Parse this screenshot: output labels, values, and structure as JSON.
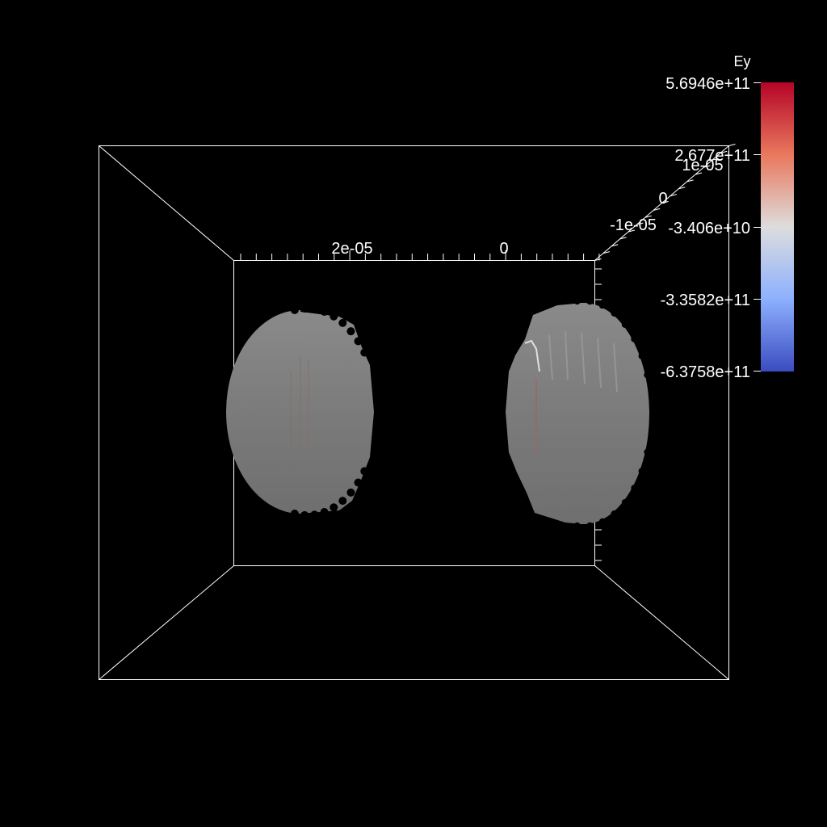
{
  "colorbar": {
    "title": "Ey",
    "ticks": [
      "5.6946e+11",
      "2.677e+11",
      "-3.406e+10",
      "-3.3582e+11",
      "-6.3758e+11"
    ],
    "colors": {
      "top": "#b40426",
      "mid": "#dddddd",
      "bottom": "#3b4cc0"
    }
  },
  "axes": {
    "x_labels": [
      "2e-05",
      "0"
    ],
    "depth_labels": [
      "1e-05",
      "0",
      "-1e-05"
    ],
    "line_color": "#ffffff"
  },
  "objects": {
    "surface_color": "#7a7a7a"
  }
}
